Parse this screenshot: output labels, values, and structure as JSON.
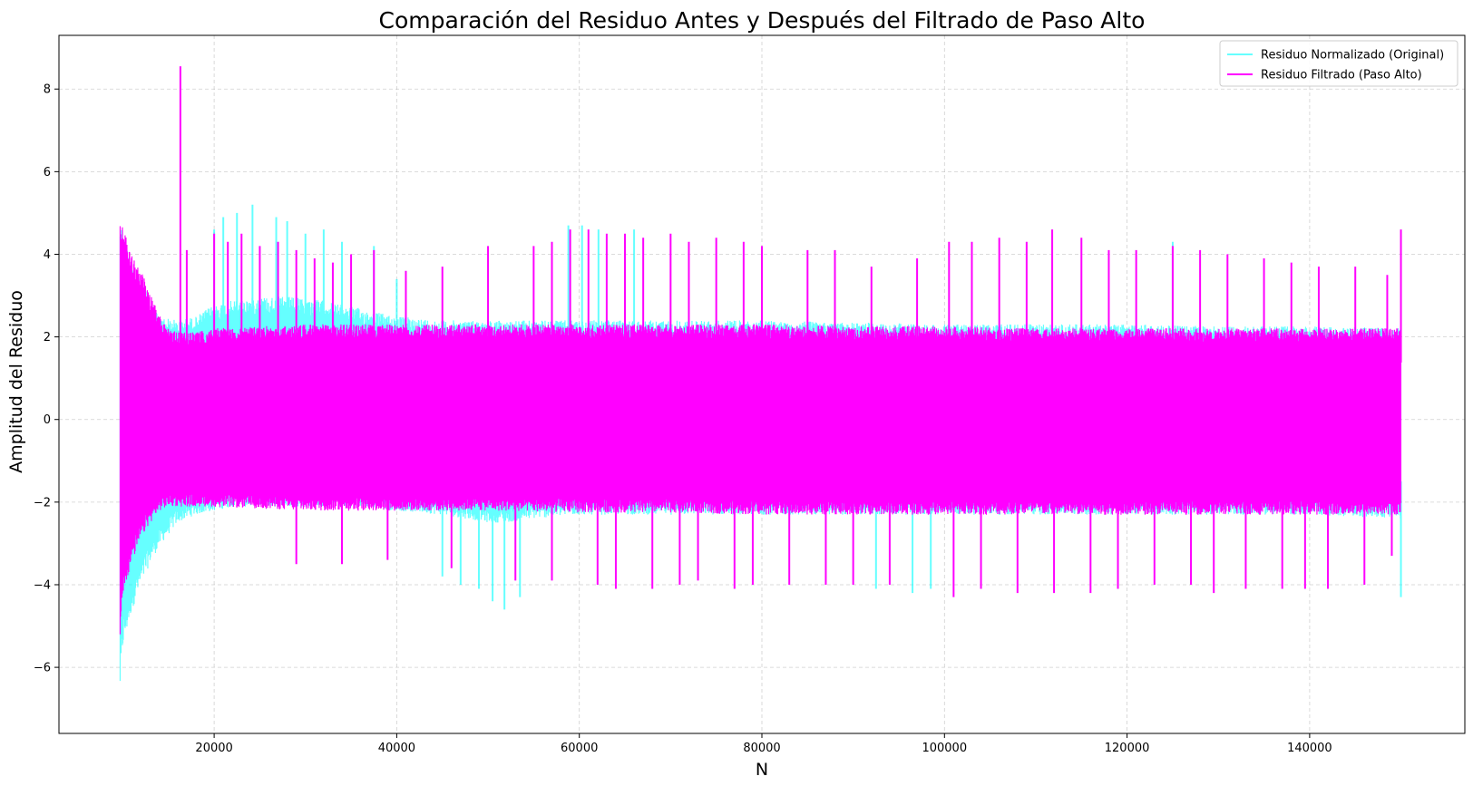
{
  "chart_data": {
    "type": "line",
    "title": "Comparación del Residuo Antes y Después del Filtrado de Paso Alto",
    "xlabel": "N",
    "ylabel": "Amplitud del Residuo",
    "xlim": [
      3000,
      157000
    ],
    "ylim": [
      -7.6,
      9.3
    ],
    "xticks": [
      20000,
      40000,
      60000,
      80000,
      100000,
      120000,
      140000
    ],
    "xtick_labels": [
      "20000",
      "40000",
      "60000",
      "80000",
      "100000",
      "120000",
      "140000"
    ],
    "yticks": [
      -6,
      -4,
      -2,
      0,
      2,
      4,
      6,
      8
    ],
    "ytick_labels": [
      "−6",
      "−4",
      "−2",
      "0",
      "2",
      "4",
      "6",
      "8"
    ],
    "grid": true,
    "legend_position": "top-right",
    "series": [
      {
        "name": "Residuo Normalizado (Original)",
        "color": "#00ffff",
        "alpha": 0.6,
        "x_range": [
          9700,
          150000
        ],
        "envelope": {
          "x": [
            9700,
            10000,
            11000,
            12000,
            13000,
            14000,
            16000,
            18000,
            20000,
            22000,
            25000,
            28000,
            32000,
            36000,
            40000,
            45000,
            50000,
            52000,
            55000,
            60000,
            65000,
            70000,
            80000,
            90000,
            100000,
            110000,
            120000,
            130000,
            140000,
            150000
          ],
          "upper": [
            5.1,
            4.7,
            4.0,
            3.5,
            3.0,
            2.6,
            2.5,
            2.6,
            2.9,
            3.0,
            3.1,
            3.1,
            3.0,
            2.8,
            2.6,
            2.5,
            2.5,
            2.5,
            2.5,
            2.5,
            2.5,
            2.5,
            2.5,
            2.45,
            2.4,
            2.4,
            2.4,
            2.35,
            2.35,
            2.3
          ],
          "lower": [
            -6.9,
            -5.8,
            -4.8,
            -4.2,
            -3.6,
            -3.2,
            -2.6,
            -2.4,
            -2.3,
            -2.2,
            -2.2,
            -2.2,
            -2.2,
            -2.2,
            -2.3,
            -2.4,
            -2.6,
            -2.6,
            -2.5,
            -2.4,
            -2.4,
            -2.4,
            -2.4,
            -2.4,
            -2.4,
            -2.4,
            -2.4,
            -2.4,
            -2.4,
            -2.5
          ]
        },
        "spikes": [
          [
            20000,
            4.6
          ],
          [
            21000,
            4.9
          ],
          [
            22500,
            5.0
          ],
          [
            24200,
            5.2
          ],
          [
            26800,
            4.9
          ],
          [
            28000,
            4.8
          ],
          [
            30000,
            4.5
          ],
          [
            32000,
            4.6
          ],
          [
            34000,
            4.3
          ],
          [
            37500,
            4.2
          ],
          [
            40000,
            3.4
          ],
          [
            50500,
            -4.4
          ],
          [
            51800,
            -4.6
          ],
          [
            53500,
            -4.3
          ],
          [
            45000,
            -3.8
          ],
          [
            47000,
            -4.0
          ],
          [
            49000,
            -4.1
          ],
          [
            58800,
            4.7
          ],
          [
            60300,
            4.7
          ],
          [
            62100,
            4.6
          ],
          [
            66000,
            4.6
          ],
          [
            92500,
            -4.1
          ],
          [
            96500,
            -4.2
          ],
          [
            98500,
            -4.1
          ],
          [
            125000,
            4.3
          ],
          [
            150000,
            -4.3
          ]
        ]
      },
      {
        "name": "Residuo Filtrado (Paso Alto)",
        "color": "#ff00ff",
        "alpha": 1.0,
        "x_range": [
          9700,
          150000
        ],
        "envelope": {
          "x": [
            9700,
            10000,
            11000,
            12000,
            13000,
            14000,
            15000,
            16000,
            18000,
            20000,
            30000,
            40000,
            50000,
            60000,
            70000,
            80000,
            90000,
            100000,
            110000,
            120000,
            130000,
            140000,
            150000
          ],
          "upper": [
            5.1,
            4.8,
            4.2,
            3.8,
            3.2,
            2.7,
            2.3,
            2.2,
            2.2,
            2.3,
            2.4,
            2.4,
            2.4,
            2.4,
            2.4,
            2.4,
            2.35,
            2.35,
            2.3,
            2.3,
            2.3,
            2.3,
            2.3
          ],
          "lower": [
            -5.6,
            -4.4,
            -3.6,
            -3.0,
            -2.6,
            -2.3,
            -2.2,
            -2.2,
            -2.2,
            -2.2,
            -2.3,
            -2.3,
            -2.3,
            -2.35,
            -2.35,
            -2.4,
            -2.4,
            -2.4,
            -2.4,
            -2.4,
            -2.4,
            -2.4,
            -2.4
          ]
        },
        "spikes": [
          [
            16300,
            8.55
          ],
          [
            17000,
            4.1
          ],
          [
            20000,
            4.5
          ],
          [
            21500,
            4.3
          ],
          [
            23000,
            4.5
          ],
          [
            25000,
            4.2
          ],
          [
            27000,
            4.3
          ],
          [
            29000,
            4.1
          ],
          [
            31000,
            3.9
          ],
          [
            33000,
            3.8
          ],
          [
            35000,
            4.0
          ],
          [
            37500,
            4.1
          ],
          [
            41000,
            3.6
          ],
          [
            45000,
            3.7
          ],
          [
            50000,
            4.2
          ],
          [
            55000,
            4.2
          ],
          [
            57000,
            4.3
          ],
          [
            59000,
            4.6
          ],
          [
            61000,
            4.6
          ],
          [
            63000,
            4.5
          ],
          [
            65000,
            4.5
          ],
          [
            67000,
            4.4
          ],
          [
            70000,
            4.5
          ],
          [
            72000,
            4.3
          ],
          [
            75000,
            4.4
          ],
          [
            78000,
            4.3
          ],
          [
            80000,
            4.2
          ],
          [
            85000,
            4.1
          ],
          [
            88000,
            4.1
          ],
          [
            92000,
            3.7
          ],
          [
            97000,
            3.9
          ],
          [
            100500,
            4.3
          ],
          [
            103000,
            4.3
          ],
          [
            106000,
            4.4
          ],
          [
            109000,
            4.3
          ],
          [
            111800,
            4.6
          ],
          [
            115000,
            4.4
          ],
          [
            118000,
            4.1
          ],
          [
            121000,
            4.1
          ],
          [
            125000,
            4.2
          ],
          [
            128000,
            4.1
          ],
          [
            131000,
            4.0
          ],
          [
            135000,
            3.9
          ],
          [
            138000,
            3.8
          ],
          [
            141000,
            3.7
          ],
          [
            145000,
            3.7
          ],
          [
            148500,
            3.5
          ],
          [
            150000,
            4.6
          ],
          [
            29000,
            -3.5
          ],
          [
            34000,
            -3.5
          ],
          [
            39000,
            -3.4
          ],
          [
            46000,
            -3.6
          ],
          [
            53000,
            -3.9
          ],
          [
            57000,
            -3.9
          ],
          [
            62000,
            -4.0
          ],
          [
            64000,
            -4.1
          ],
          [
            68000,
            -4.1
          ],
          [
            71000,
            -4.0
          ],
          [
            73000,
            -3.9
          ],
          [
            77000,
            -4.1
          ],
          [
            79000,
            -4.0
          ],
          [
            83000,
            -4.0
          ],
          [
            87000,
            -4.0
          ],
          [
            90000,
            -4.0
          ],
          [
            94000,
            -4.0
          ],
          [
            101000,
            -4.3
          ],
          [
            104000,
            -4.1
          ],
          [
            108000,
            -4.2
          ],
          [
            112000,
            -4.2
          ],
          [
            116000,
            -4.2
          ],
          [
            119000,
            -4.1
          ],
          [
            123000,
            -4.0
          ],
          [
            127000,
            -4.0
          ],
          [
            129500,
            -4.2
          ],
          [
            133000,
            -4.1
          ],
          [
            137000,
            -4.1
          ],
          [
            139500,
            -4.1
          ],
          [
            142000,
            -4.1
          ],
          [
            146000,
            -4.0
          ],
          [
            149000,
            -3.3
          ]
        ]
      }
    ]
  }
}
